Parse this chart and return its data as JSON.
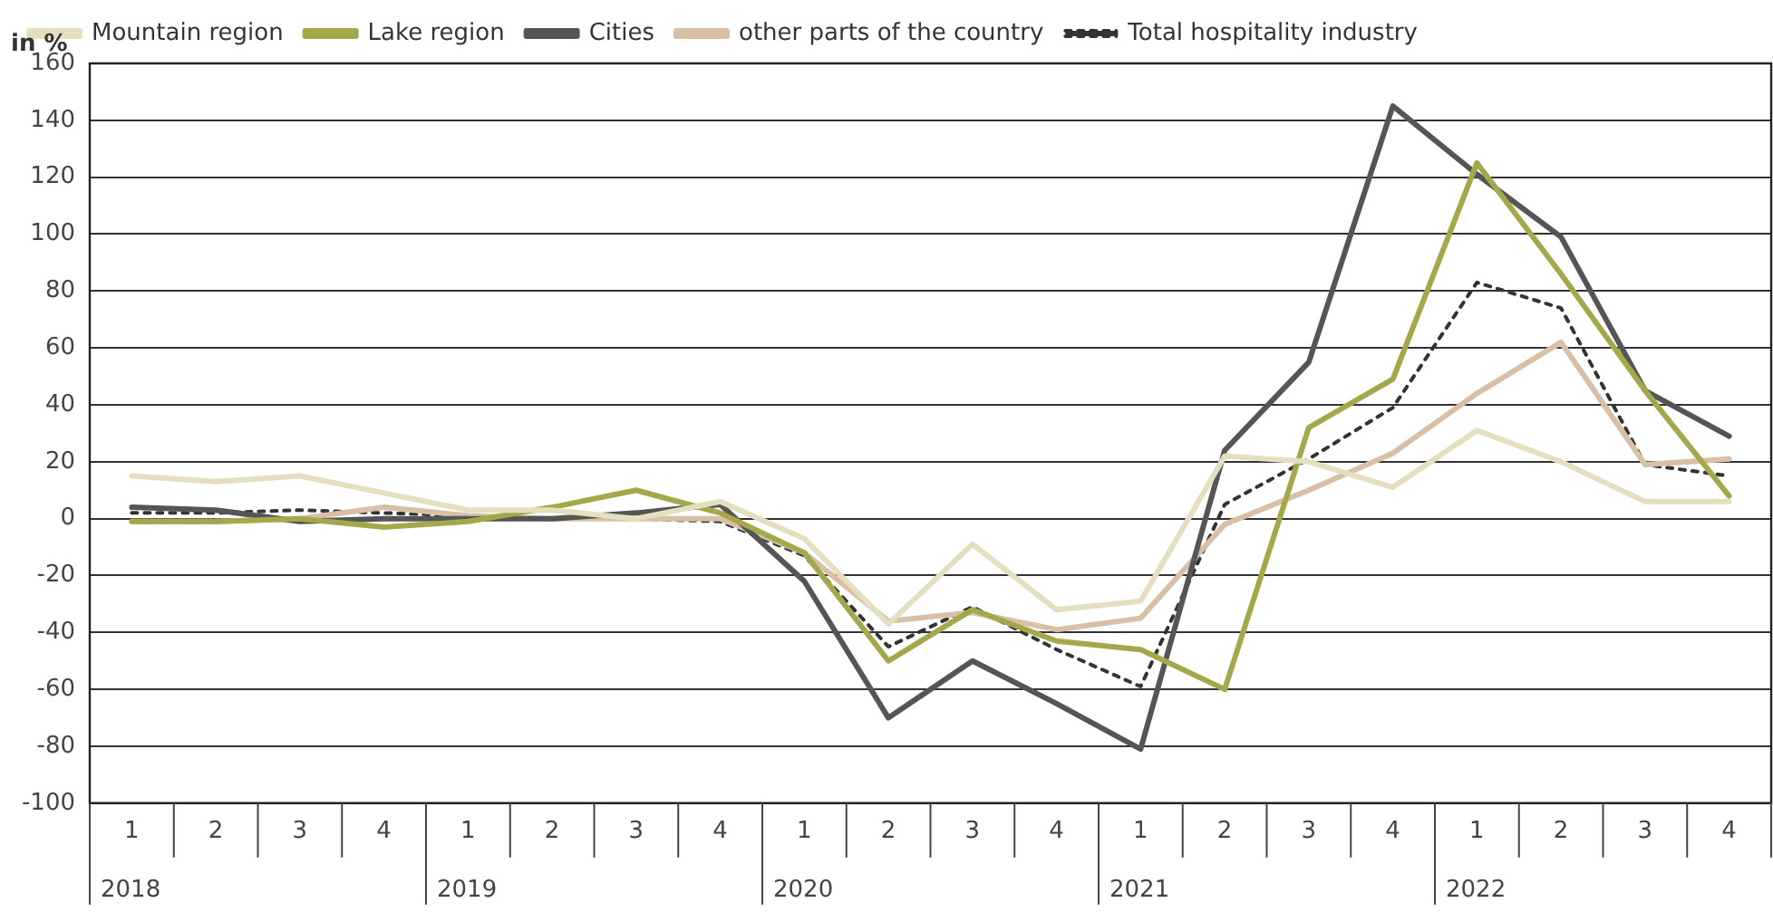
{
  "chart_data": {
    "type": "line",
    "ylabel": "in %",
    "categories": [
      "1",
      "2",
      "3",
      "4",
      "1",
      "2",
      "3",
      "4",
      "1",
      "2",
      "3",
      "4",
      "1",
      "2",
      "3",
      "4",
      "1",
      "2",
      "3",
      "4"
    ],
    "annotations": [
      "2018",
      "2019",
      "2020",
      "2021",
      "2022"
    ],
    "series": [
      {
        "name": "Mountain region",
        "color": "#e3dfbf",
        "values": [
          15,
          13,
          15,
          9,
          3,
          3,
          0,
          6,
          -7,
          -37,
          -9,
          -32,
          -29,
          22,
          20,
          11,
          31,
          20,
          6,
          6
        ]
      },
      {
        "name": "Lake region",
        "color": "#a5a84a",
        "values": [
          -1,
          -1,
          0,
          -3,
          -1,
          4,
          10,
          2,
          -12,
          -50,
          -32,
          -43,
          -46,
          -60,
          32,
          49,
          125,
          86,
          45,
          8
        ]
      },
      {
        "name": "Cities",
        "color": "#555555",
        "values": [
          4,
          3,
          -1,
          0,
          0,
          0,
          2,
          5,
          -22,
          -70,
          -50,
          -65,
          -81,
          24,
          55,
          145,
          121,
          99,
          45,
          29
        ]
      },
      {
        "name": "other parts of the country",
        "color": "#d8bfa6",
        "values": [
          -1,
          -1,
          0,
          4,
          1,
          0,
          0,
          0,
          -12,
          -36,
          -33,
          -39,
          -35,
          -2,
          10,
          23,
          44,
          62,
          19,
          21
        ]
      },
      {
        "name": "Total hospitality industry",
        "color": "#333333",
        "line_style": "dotted",
        "values": [
          2,
          2,
          3,
          2,
          1,
          0,
          0,
          -1,
          -13,
          -45,
          -31,
          -46,
          -59,
          5,
          21,
          39,
          83,
          74,
          19,
          15
        ]
      }
    ],
    "ylim": [
      -100,
      160
    ],
    "yticks": [
      -100,
      -80,
      -60,
      -40,
      -20,
      0,
      20,
      40,
      60,
      80,
      100,
      120,
      140,
      160
    ],
    "grid": "y",
    "legend": "top left",
    "marker": "none"
  }
}
